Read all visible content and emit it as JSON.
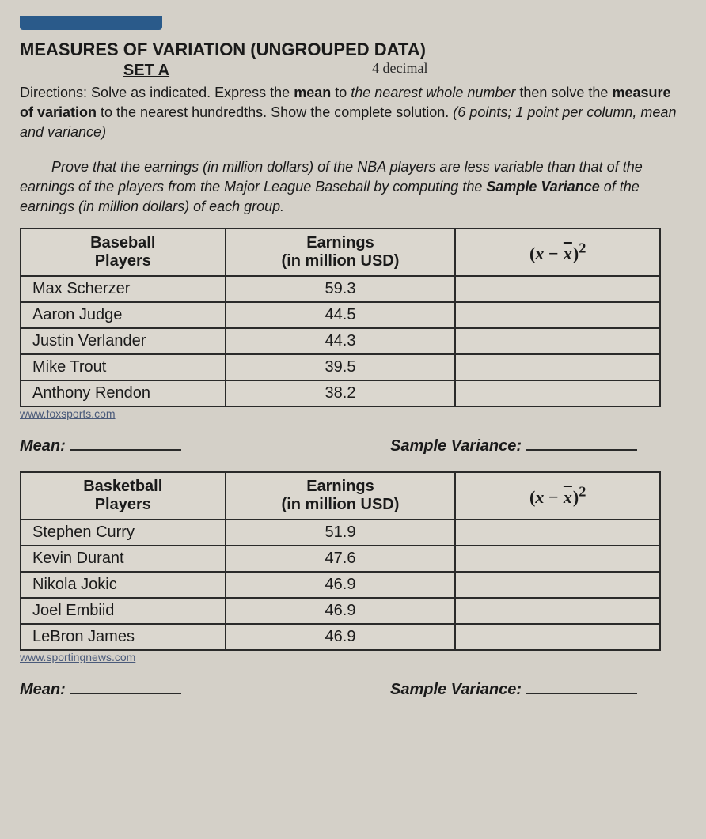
{
  "header": {
    "title": "MEASURES OF VARIATION (UNGROUPED DATA)",
    "subtitle": "SET A",
    "handwritten": "4 decimal"
  },
  "directions": {
    "prefix": "Directions:",
    "part1": "Solve as indicated. Express the ",
    "mean_word": "mean",
    "part2": " to ",
    "struck": "the nearest whole number",
    "part3": " then solve the ",
    "mov_word": "measure of variation",
    "part4": " to the nearest hundredths. Show the complete solution. ",
    "points": "(6 points; 1 point per column, mean and variance)"
  },
  "prove": {
    "part1": "Prove that the earnings (in million dollars) of the NBA players are less variable than that of the earnings of the players from the Major League Baseball by computing the ",
    "bold1": "Sample Variance",
    "part2": " of the earnings (in million dollars) of each group."
  },
  "table1": {
    "headers": {
      "col1a": "Baseball",
      "col1b": "Players",
      "col2a": "Earnings",
      "col2b": "(in million USD)"
    },
    "rows": [
      {
        "name": "Max Scherzer",
        "earn": "59.3"
      },
      {
        "name": "Aaron Judge",
        "earn": "44.5"
      },
      {
        "name": "Justin Verlander",
        "earn": "44.3"
      },
      {
        "name": "Mike Trout",
        "earn": "39.5"
      },
      {
        "name": "Anthony Rendon",
        "earn": "38.2"
      }
    ],
    "source": "www.foxsports.com"
  },
  "table2": {
    "headers": {
      "col1a": "Basketball",
      "col1b": "Players",
      "col2a": "Earnings",
      "col2b": "(in million USD)"
    },
    "rows": [
      {
        "name": "Stephen Curry",
        "earn": "51.9"
      },
      {
        "name": "Kevin Durant",
        "earn": "47.6"
      },
      {
        "name": "Nikola Jokic",
        "earn": "46.9"
      },
      {
        "name": "Joel Embiid",
        "earn": "46.9"
      },
      {
        "name": "LeBron James",
        "earn": "46.9"
      }
    ],
    "source": "www.sportingnews.com"
  },
  "answers": {
    "mean_label": "Mean:",
    "variance_label": "Sample Variance:"
  },
  "styling": {
    "page_bg": "#d4d0c8",
    "text_color": "#1a1a1a",
    "border_color": "#2a2a2a",
    "header_bar_color": "#2a5a8a",
    "link_color": "#4a5a7a",
    "title_fontsize": 22,
    "body_fontsize": 18,
    "table_fontsize": 20,
    "table_border_width": 2,
    "col_widths_pct": [
      32,
      36,
      32
    ]
  }
}
